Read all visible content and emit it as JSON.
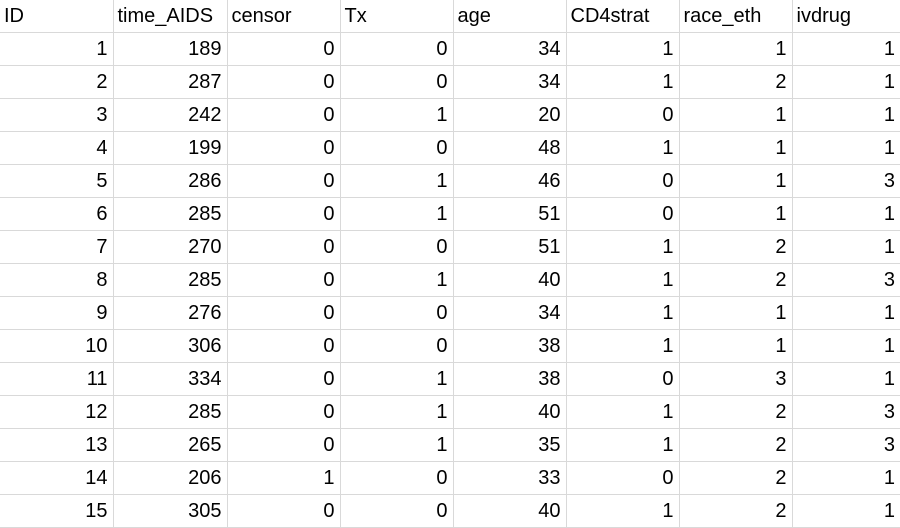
{
  "spreadsheet": {
    "columns": [
      "ID",
      "time_AIDS",
      "censor",
      "Tx",
      "age",
      "CD4strat",
      "race_eth",
      "ivdrug"
    ],
    "rows": [
      [
        "1",
        "189",
        "0",
        "0",
        "34",
        "1",
        "1",
        "1"
      ],
      [
        "2",
        "287",
        "0",
        "0",
        "34",
        "1",
        "2",
        "1"
      ],
      [
        "3",
        "242",
        "0",
        "1",
        "20",
        "0",
        "1",
        "1"
      ],
      [
        "4",
        "199",
        "0",
        "0",
        "48",
        "1",
        "1",
        "1"
      ],
      [
        "5",
        "286",
        "0",
        "1",
        "46",
        "0",
        "1",
        "3"
      ],
      [
        "6",
        "285",
        "0",
        "1",
        "51",
        "0",
        "1",
        "1"
      ],
      [
        "7",
        "270",
        "0",
        "0",
        "51",
        "1",
        "2",
        "1"
      ],
      [
        "8",
        "285",
        "0",
        "1",
        "40",
        "1",
        "2",
        "3"
      ],
      [
        "9",
        "276",
        "0",
        "0",
        "34",
        "1",
        "1",
        "1"
      ],
      [
        "10",
        "306",
        "0",
        "0",
        "38",
        "1",
        "1",
        "1"
      ],
      [
        "11",
        "334",
        "0",
        "1",
        "38",
        "0",
        "3",
        "1"
      ],
      [
        "12",
        "285",
        "0",
        "1",
        "40",
        "1",
        "2",
        "3"
      ],
      [
        "13",
        "265",
        "0",
        "1",
        "35",
        "1",
        "2",
        "3"
      ],
      [
        "14",
        "206",
        "1",
        "0",
        "33",
        "0",
        "2",
        "1"
      ],
      [
        "15",
        "305",
        "0",
        "0",
        "40",
        "1",
        "2",
        "1"
      ]
    ]
  }
}
